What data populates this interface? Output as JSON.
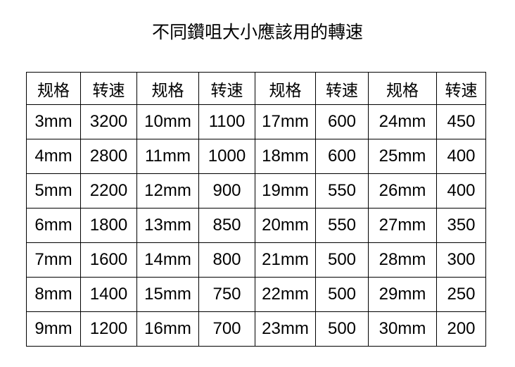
{
  "title": "不同鑽咀大小應該用的轉速",
  "table": {
    "headers": [
      "规格",
      "转速",
      "规格",
      "转速",
      "规格",
      "转速",
      "规格",
      "转速"
    ],
    "rows": [
      [
        "3mm",
        "3200",
        "10mm",
        "1100",
        "17mm",
        "600",
        "24mm",
        "450"
      ],
      [
        "4mm",
        "2800",
        "11mm",
        "1000",
        "18mm",
        "600",
        "25mm",
        "400"
      ],
      [
        "5mm",
        "2200",
        "12mm",
        "900",
        "19mm",
        "550",
        "26mm",
        "400"
      ],
      [
        "6mm",
        "1800",
        "13mm",
        "850",
        "20mm",
        "550",
        "27mm",
        "350"
      ],
      [
        "7mm",
        "1600",
        "14mm",
        "800",
        "21mm",
        "500",
        "28mm",
        "300"
      ],
      [
        "8mm",
        "1400",
        "15mm",
        "750",
        "22mm",
        "500",
        "29mm",
        "250"
      ],
      [
        "9mm",
        "1200",
        "16mm",
        "700",
        "23mm",
        "500",
        "30mm",
        "200"
      ]
    ]
  }
}
